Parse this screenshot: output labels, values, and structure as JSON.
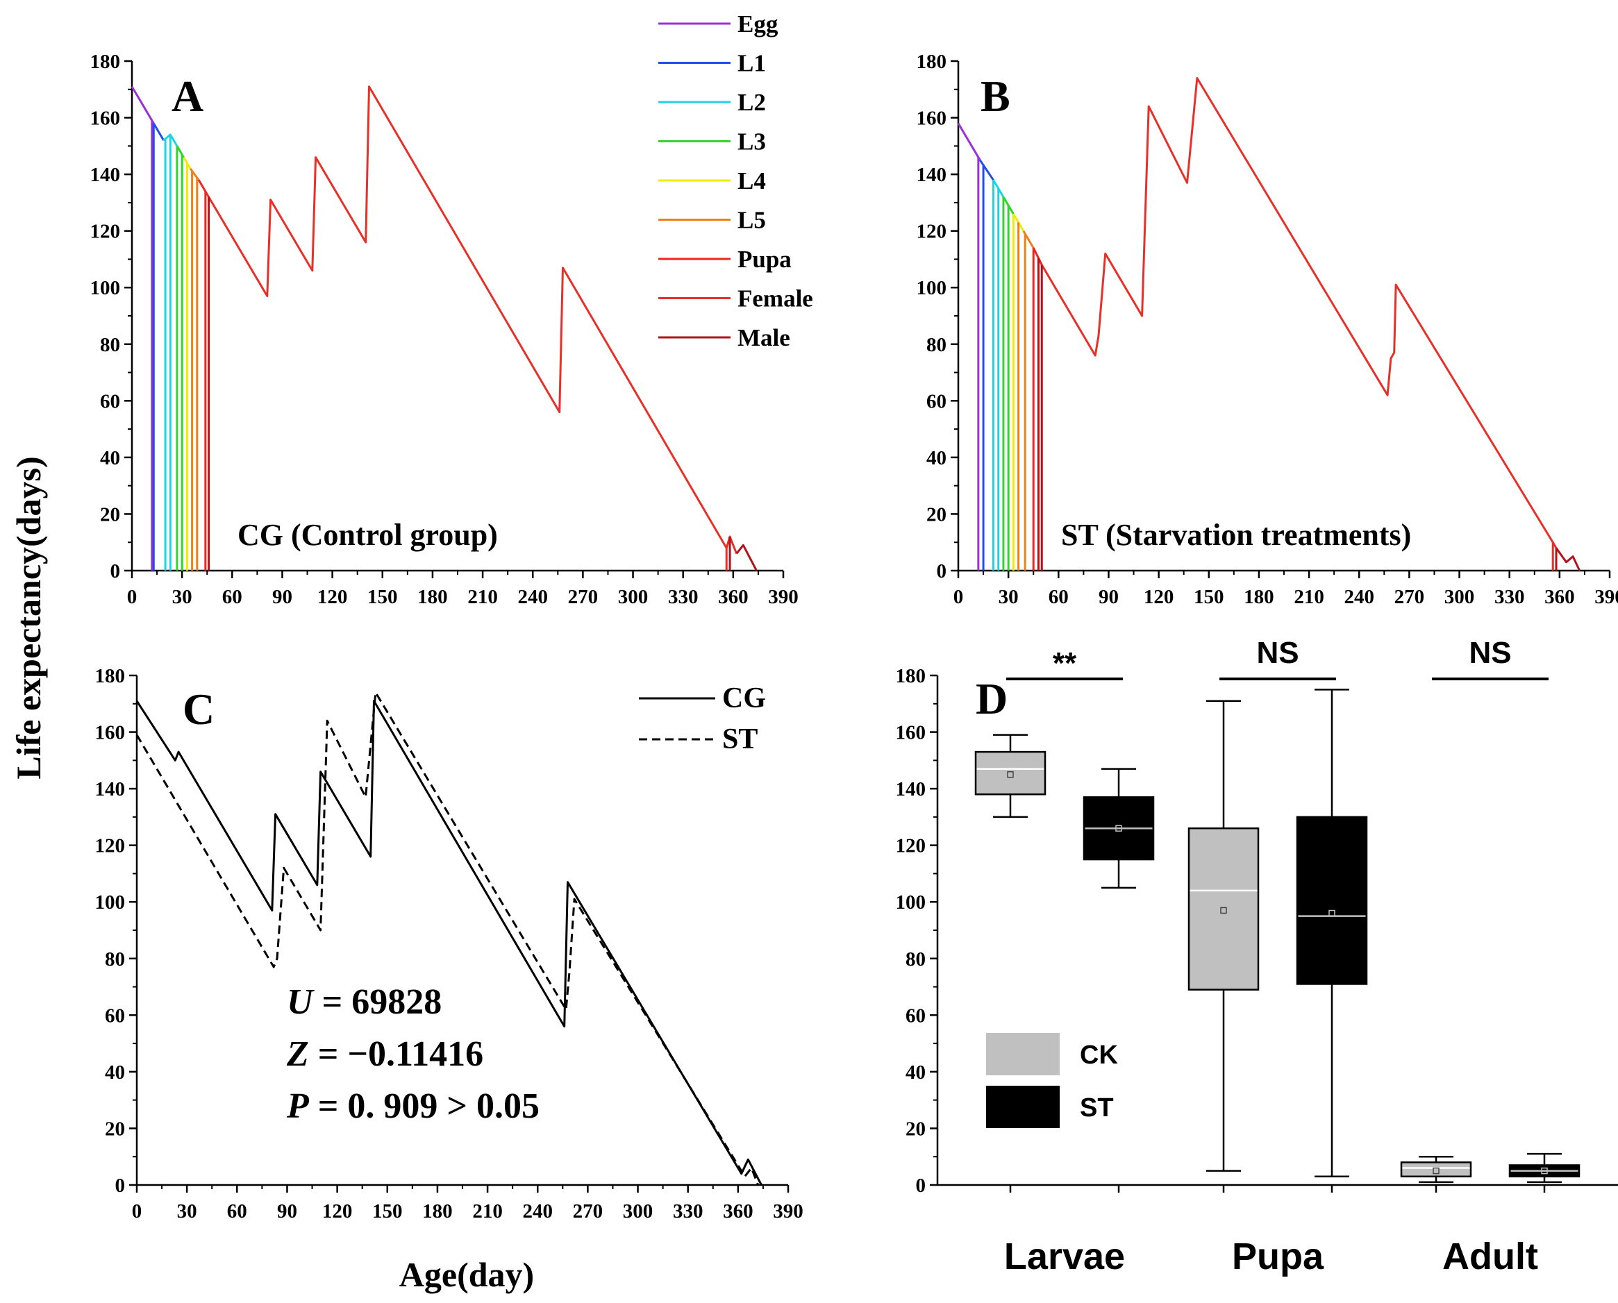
{
  "y_axis_label": "Life expectancy(days)",
  "x_axis_label": "Age(day)",
  "legend_stages": [
    {
      "label": "Egg",
      "color": "#9b30d9"
    },
    {
      "label": "L1",
      "color": "#1f4fe8"
    },
    {
      "label": "L2",
      "color": "#1fd4e0"
    },
    {
      "label": "L3",
      "color": "#2ed62e"
    },
    {
      "label": "L4",
      "color": "#eded00"
    },
    {
      "label": "L5",
      "color": "#f07f1a"
    },
    {
      "label": "Pupa",
      "color": "#f2241f"
    },
    {
      "label": "Female",
      "color": "#e8302a"
    },
    {
      "label": "Male",
      "color": "#b3121a"
    }
  ],
  "chart_data": [
    {
      "panel": "A",
      "type": "line",
      "title": "CG (Control group)",
      "xlabel": "",
      "ylabel": "Life expectancy(days)",
      "xlim": [
        0,
        390
      ],
      "ylim": [
        0,
        180
      ],
      "xticks": [
        "0",
        "30",
        "60",
        "90",
        "120",
        "150",
        "180",
        "210",
        "240",
        "270",
        "300",
        "330",
        "360",
        "390"
      ],
      "yticks": [
        "0",
        "20",
        "40",
        "60",
        "80",
        "100",
        "120",
        "140",
        "160",
        "180"
      ],
      "series": [
        {
          "name": "Egg",
          "points": [
            [
              0,
              171
            ],
            [
              13,
              158
            ]
          ]
        },
        {
          "name": "L1",
          "points": [
            [
              13,
              158
            ],
            [
              19,
              152
            ]
          ]
        },
        {
          "name": "L2",
          "points": [
            [
              19,
              152
            ],
            [
              23,
              154
            ],
            [
              27,
              150
            ]
          ]
        },
        {
          "name": "L3",
          "points": [
            [
              27,
              150
            ],
            [
              31,
              146
            ]
          ]
        },
        {
          "name": "L4",
          "points": [
            [
              31,
              146
            ],
            [
              35,
              142
            ]
          ]
        },
        {
          "name": "L5",
          "points": [
            [
              35,
              142
            ],
            [
              40,
              138
            ]
          ]
        },
        {
          "name": "Pupa",
          "points": [
            [
              40,
              138
            ],
            [
              45,
              133
            ]
          ]
        },
        {
          "name": "Female",
          "points": [
            [
              45,
              133
            ],
            [
              81,
              97
            ],
            [
              83,
              131
            ],
            [
              108,
              106
            ],
            [
              110,
              146
            ],
            [
              140,
              116
            ],
            [
              142,
              171
            ],
            [
              256,
              56
            ],
            [
              258,
              107
            ],
            [
              356,
              8
            ],
            [
              358,
              12
            ],
            [
              362,
              6
            ]
          ]
        },
        {
          "name": "Male",
          "points": [
            [
              362,
              6
            ],
            [
              366,
              9
            ],
            [
              374,
              0
            ]
          ]
        }
      ],
      "stage_drops": [
        {
          "name": "Egg",
          "x": 12
        },
        {
          "name": "L1",
          "x": 13
        },
        {
          "name": "L2",
          "x": 20
        },
        {
          "name": "L2",
          "x": 23
        },
        {
          "name": "L3",
          "x": 27
        },
        {
          "name": "L3",
          "x": 30
        },
        {
          "name": "L4",
          "x": 33
        },
        {
          "name": "L5",
          "x": 36
        },
        {
          "name": "L5",
          "x": 39
        },
        {
          "name": "Pupa",
          "x": 44
        },
        {
          "name": "Male",
          "x": 46
        },
        {
          "name": "Female",
          "x": 356
        },
        {
          "name": "Male",
          "x": 358
        }
      ]
    },
    {
      "panel": "B",
      "type": "line",
      "title": "ST (Starvation treatments)",
      "xlabel": "",
      "ylabel": "",
      "xlim": [
        0,
        390
      ],
      "ylim": [
        0,
        180
      ],
      "xticks": [
        "0",
        "30",
        "60",
        "90",
        "120",
        "150",
        "180",
        "210",
        "240",
        "270",
        "300",
        "330",
        "360",
        "390"
      ],
      "yticks": [
        "0",
        "20",
        "40",
        "60",
        "80",
        "100",
        "120",
        "140",
        "160",
        "180"
      ],
      "series": [
        {
          "name": "Egg",
          "points": [
            [
              0,
              158
            ],
            [
              13,
              145
            ]
          ]
        },
        {
          "name": "L1",
          "points": [
            [
              13,
              145
            ],
            [
              21,
              138
            ]
          ]
        },
        {
          "name": "L2",
          "points": [
            [
              21,
              138
            ],
            [
              27,
              132
            ]
          ]
        },
        {
          "name": "L3",
          "points": [
            [
              27,
              132
            ],
            [
              33,
              126
            ]
          ]
        },
        {
          "name": "L4",
          "points": [
            [
              33,
              126
            ],
            [
              39,
              120
            ]
          ]
        },
        {
          "name": "L5",
          "points": [
            [
              39,
              120
            ],
            [
              45,
              114
            ]
          ]
        },
        {
          "name": "Pupa",
          "points": [
            [
              45,
              114
            ],
            [
              50,
              108
            ]
          ]
        },
        {
          "name": "Female",
          "points": [
            [
              50,
              108
            ],
            [
              82,
              76
            ],
            [
              84,
              83
            ],
            [
              88,
              112
            ],
            [
              110,
              90
            ],
            [
              114,
              164
            ],
            [
              137,
              137
            ],
            [
              143,
              174
            ],
            [
              257,
              62
            ],
            [
              259,
              75
            ],
            [
              261,
              77
            ],
            [
              262,
              101
            ],
            [
              356,
              10
            ],
            [
              358,
              8
            ]
          ]
        },
        {
          "name": "Male",
          "points": [
            [
              358,
              8
            ],
            [
              364,
              3
            ],
            [
              368,
              5
            ],
            [
              372,
              0
            ]
          ]
        }
      ],
      "stage_drops": [
        {
          "name": "Egg",
          "x": 12
        },
        {
          "name": "L1",
          "x": 15
        },
        {
          "name": "L2",
          "x": 21
        },
        {
          "name": "L2",
          "x": 24
        },
        {
          "name": "L3",
          "x": 27
        },
        {
          "name": "L3",
          "x": 30
        },
        {
          "name": "L4",
          "x": 33
        },
        {
          "name": "L5",
          "x": 36
        },
        {
          "name": "L5",
          "x": 40
        },
        {
          "name": "Pupa",
          "x": 45
        },
        {
          "name": "Male",
          "x": 48
        },
        {
          "name": "Male",
          "x": 50
        },
        {
          "name": "Female",
          "x": 356
        },
        {
          "name": "Male",
          "x": 358
        }
      ]
    },
    {
      "panel": "C",
      "type": "line",
      "title": "",
      "xlabel": "Age(day)",
      "ylabel": "",
      "xlim": [
        0,
        390
      ],
      "ylim": [
        0,
        180
      ],
      "xticks": [
        "0",
        "30",
        "60",
        "90",
        "120",
        "150",
        "180",
        "210",
        "240",
        "270",
        "300",
        "330",
        "360",
        "390"
      ],
      "yticks": [
        "0",
        "20",
        "40",
        "60",
        "80",
        "100",
        "120",
        "140",
        "160",
        "180"
      ],
      "series": [
        {
          "name": "CG",
          "style": "solid",
          "points": [
            [
              0,
              171
            ],
            [
              23,
              150
            ],
            [
              25,
              153
            ],
            [
              81,
              97
            ],
            [
              83,
              131
            ],
            [
              108,
              106
            ],
            [
              110,
              146
            ],
            [
              140,
              116
            ],
            [
              142,
              171
            ],
            [
              256,
              56
            ],
            [
              258,
              107
            ],
            [
              360,
              6
            ],
            [
              362,
              4
            ],
            [
              366,
              9
            ],
            [
              374,
              0
            ]
          ]
        },
        {
          "name": "ST",
          "style": "dashed",
          "points": [
            [
              0,
              159
            ],
            [
              82,
              77
            ],
            [
              84,
              80
            ],
            [
              88,
              112
            ],
            [
              110,
              90
            ],
            [
              114,
              164
            ],
            [
              137,
              137
            ],
            [
              143,
              174
            ],
            [
              257,
              62
            ],
            [
              259,
              75
            ],
            [
              262,
              101
            ],
            [
              362,
              5
            ],
            [
              364,
              3
            ],
            [
              368,
              6
            ],
            [
              372,
              0
            ]
          ]
        }
      ],
      "stats_lines": [
        {
          "var": "U",
          "text": " = 69828"
        },
        {
          "var": "Z",
          "text": " = −0.11416"
        },
        {
          "var": "P",
          "text": " = 0. 909 > 0.05"
        }
      ]
    },
    {
      "panel": "D",
      "type": "box",
      "ylim": [
        0,
        180
      ],
      "yticks": [
        "0",
        "20",
        "40",
        "60",
        "80",
        "100",
        "120",
        "140",
        "160",
        "180"
      ],
      "categories": [
        "Larvae",
        "Pupa",
        "Adult"
      ],
      "series": [
        {
          "name": "CK",
          "color": "#c0c0c0",
          "median_color": "#ffffff",
          "boxes": [
            {
              "min": 130,
              "q1": 138,
              "median": 147,
              "q3": 153,
              "max": 159,
              "mean": 145
            },
            {
              "min": 5,
              "q1": 69,
              "median": 104,
              "q3": 126,
              "max": 171,
              "mean": 97
            },
            {
              "min": 1,
              "q1": 3,
              "median": 6,
              "q3": 8,
              "max": 10,
              "mean": 5
            }
          ]
        },
        {
          "name": "ST",
          "color": "#000000",
          "median_color": "#c0c0c0",
          "boxes": [
            {
              "min": 105,
              "q1": 115,
              "median": 126,
              "q3": 137,
              "max": 147,
              "mean": 126
            },
            {
              "min": 3,
              "q1": 71,
              "median": 95,
              "q3": 130,
              "max": 175,
              "mean": 96
            },
            {
              "min": 1,
              "q1": 3,
              "median": 5,
              "q3": 7,
              "max": 11,
              "mean": 5
            }
          ]
        }
      ],
      "significance": [
        "**",
        "NS",
        "NS"
      ]
    }
  ]
}
